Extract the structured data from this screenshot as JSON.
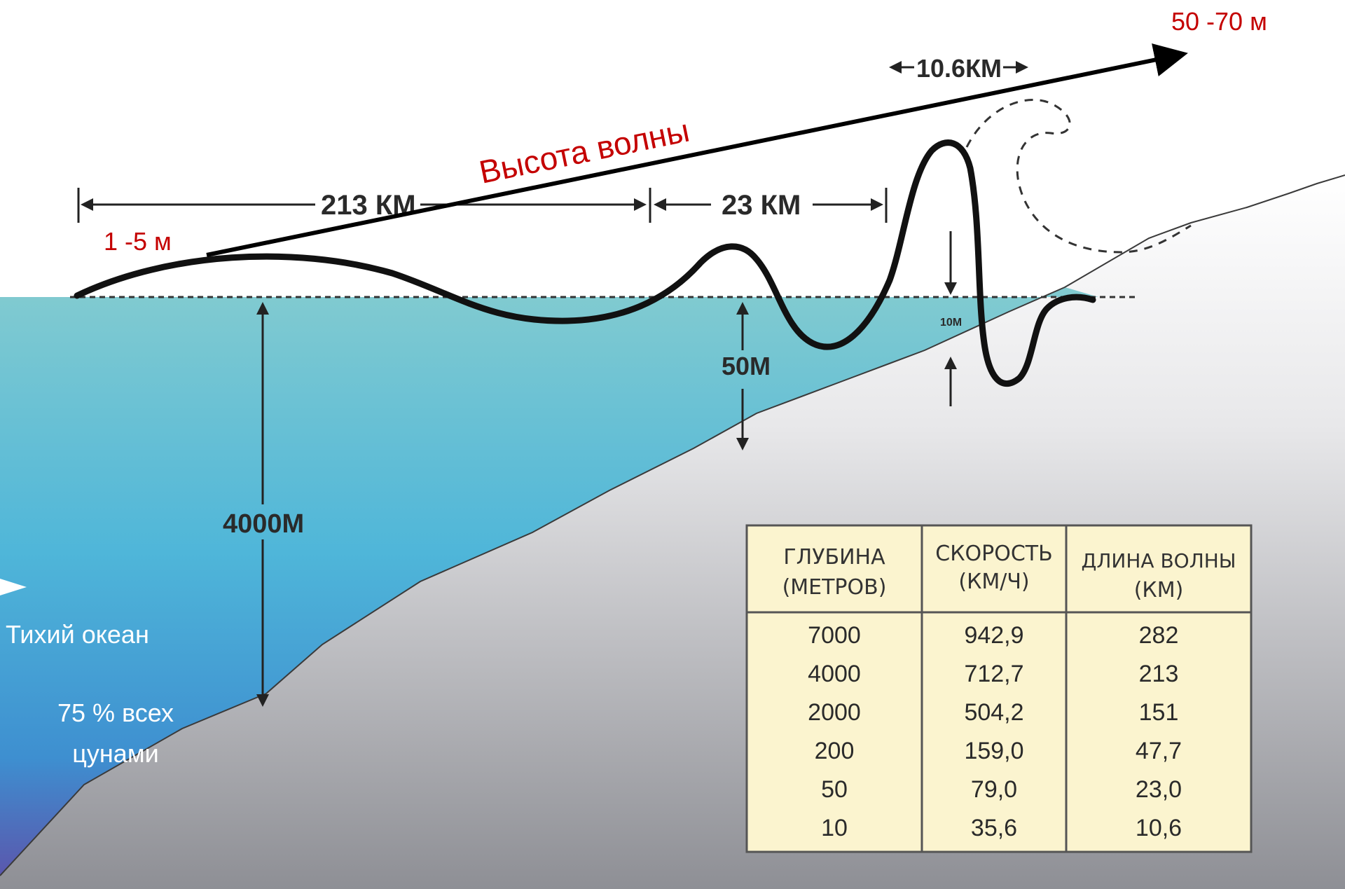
{
  "dimensions": {
    "dist_213": "213 КМ",
    "dist_23": "23 КМ",
    "dist_10_6": "10.6КМ",
    "depth_4000": "4000М",
    "depth_50": "50М",
    "depth_10": "10М"
  },
  "annotations": {
    "wave_height": "Высота волны",
    "height_start": "1 -5  м",
    "height_end": "50 -70 м",
    "ocean_name": "Тихий океан",
    "share_line1": "75 % всех",
    "share_line2": "цунами"
  },
  "table": {
    "headers": [
      [
        "ГЛУБИНА",
        "(МЕТРОВ)"
      ],
      [
        "СКОРОСТЬ",
        "(КМ/Ч)"
      ],
      [
        "ДЛИНА ВОЛНЫ",
        "(КМ)"
      ]
    ],
    "rows": [
      [
        "7000",
        "942,9",
        "282"
      ],
      [
        "4000",
        "712,7",
        "213"
      ],
      [
        "2000",
        "504,2",
        "151"
      ],
      [
        "200",
        "159,0",
        "47,7"
      ],
      [
        "50",
        "79,0",
        "23,0"
      ],
      [
        "10",
        "35,6",
        "10,6"
      ]
    ]
  },
  "colors": {
    "water_top": "#7cc9cf",
    "water_bottom": "#5a5db0",
    "land_top": "#ffffff",
    "land_bottom": "#8f9096",
    "table_bg": "#fbf4cf",
    "wave": "#111111",
    "accent_red": "#c40000"
  }
}
